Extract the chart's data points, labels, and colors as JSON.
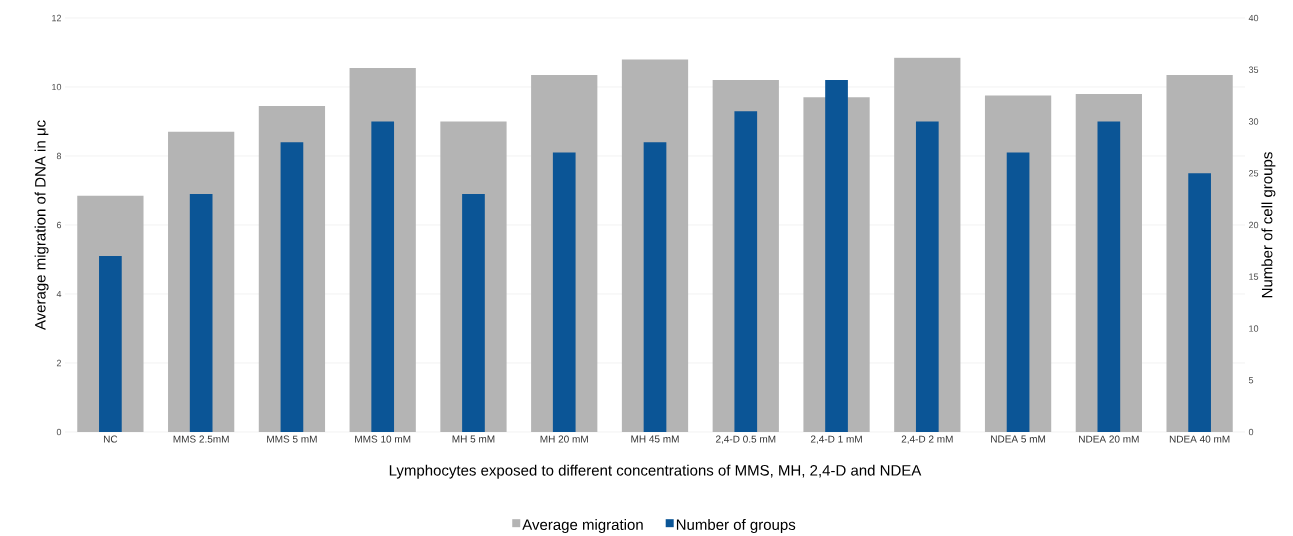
{
  "chart_data": {
    "type": "bar",
    "xlabel": "Lymphocytes exposed to different concentrations of MMS, MH, 2,4-D and NDEA",
    "ylabel": "Average migration of DNA in μc",
    "y2label": "Number of cell groups",
    "categories": [
      "NC",
      "MMS 2.5mM",
      "MMS 5 mM",
      "MMS 10 mM",
      "MH 5 mM",
      "MH 20 mM",
      "MH 45 mM",
      "2,4-D 0.5 mM",
      "2,4-D 1 mM",
      "2,4-D 2 mM",
      "NDEA 5 mM",
      "NDEA 20 mM",
      "NDEA 40 mM"
    ],
    "series": [
      {
        "name": "Average migration",
        "color": "#b4b4b4",
        "values": [
          6.85,
          8.7,
          9.45,
          10.55,
          9.0,
          10.35,
          10.8,
          10.2,
          9.7,
          10.85,
          9.75,
          9.8,
          10.35
        ]
      },
      {
        "name": "Number of groups",
        "color": "#0b5596",
        "axis": "y2",
        "values": [
          17,
          23,
          28,
          30,
          23,
          27,
          28,
          31,
          34,
          30,
          27,
          30,
          25
        ]
      }
    ],
    "ylim": [
      0,
      12
    ],
    "yticks": [
      0,
      2,
      4,
      6,
      8,
      10,
      12
    ],
    "y2lim": [
      0,
      40
    ],
    "y2ticks": [
      0,
      5,
      10,
      15,
      20,
      25,
      30,
      35,
      40
    ],
    "grid": "y",
    "legend": "bottom"
  }
}
